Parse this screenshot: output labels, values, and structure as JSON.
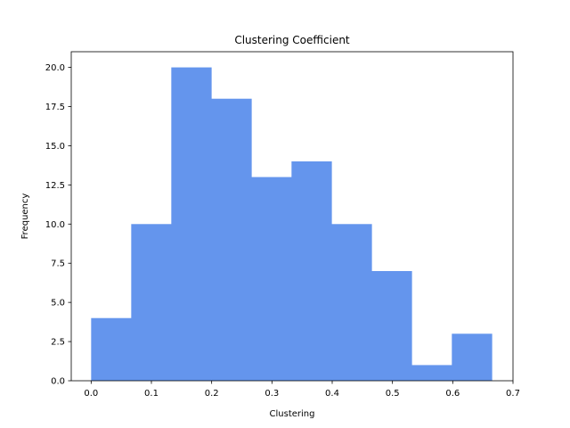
{
  "chart_data": {
    "type": "bar",
    "title": "Clustering Coefficient",
    "xlabel": "Clustering",
    "ylabel": "Frequency",
    "bin_edges": [
      0.0,
      0.0665,
      0.133,
      0.1995,
      0.266,
      0.3325,
      0.399,
      0.4655,
      0.532,
      0.5985,
      0.665
    ],
    "values": [
      4,
      10,
      20,
      18,
      13,
      14,
      10,
      7,
      1,
      3
    ],
    "xlim": [
      -0.033,
      0.7
    ],
    "ylim": [
      0,
      21
    ],
    "xticks": [
      0.0,
      0.1,
      0.2,
      0.3,
      0.4,
      0.5,
      0.6,
      0.7
    ],
    "xtick_labels": [
      "0.0",
      "0.1",
      "0.2",
      "0.3",
      "0.4",
      "0.5",
      "0.6",
      "0.7"
    ],
    "yticks": [
      0.0,
      2.5,
      5.0,
      7.5,
      10.0,
      12.5,
      15.0,
      17.5,
      20.0
    ],
    "ytick_labels": [
      "0.0",
      "2.5",
      "5.0",
      "7.5",
      "10.0",
      "12.5",
      "15.0",
      "17.5",
      "20.0"
    ],
    "bar_color": "#6495ED",
    "grid": false,
    "legend": "none"
  }
}
